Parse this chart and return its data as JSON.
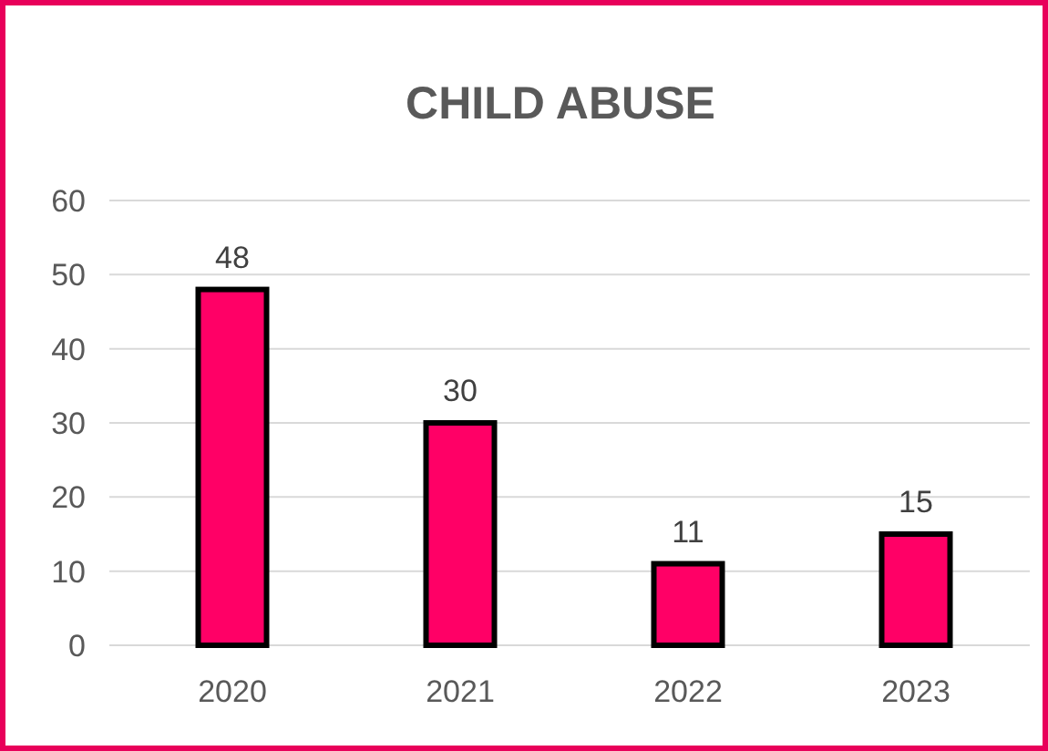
{
  "chart_data": {
    "type": "bar",
    "title": "CHILD ABUSE",
    "categories": [
      "2020",
      "2021",
      "2022",
      "2023"
    ],
    "values": [
      48,
      30,
      11,
      15
    ],
    "color": "#ff0066",
    "ylim": [
      0,
      60
    ],
    "yticks": [
      0,
      10,
      20,
      30,
      40,
      50,
      60
    ],
    "grid": "y",
    "data_labels": true
  }
}
